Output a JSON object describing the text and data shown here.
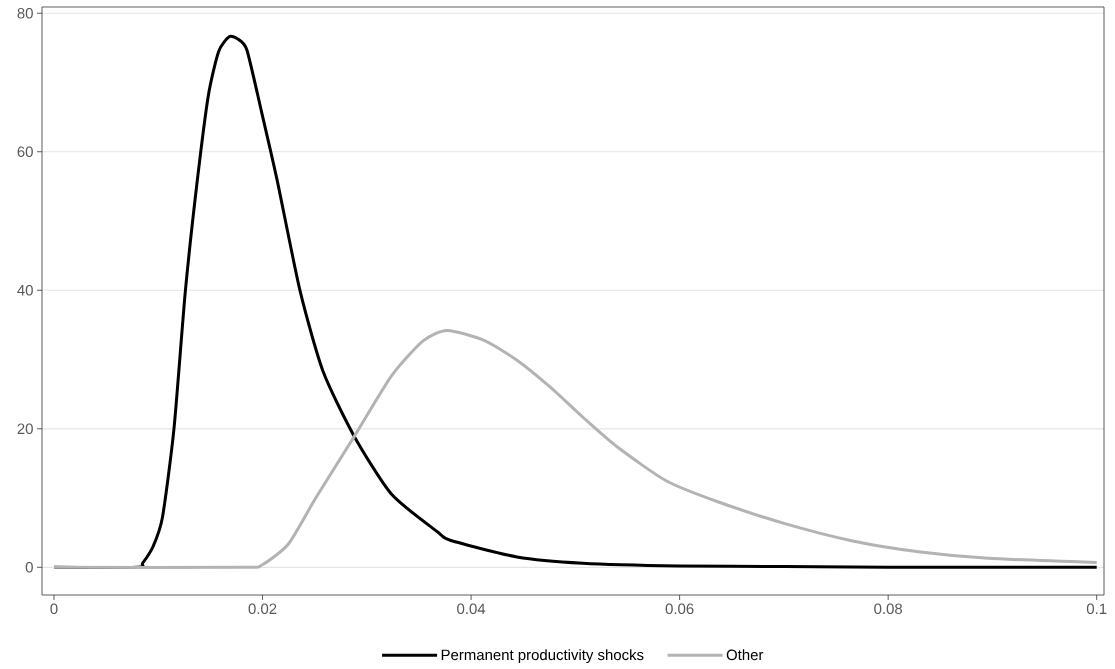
{
  "chart_data": {
    "type": "line",
    "xlim": [
      -0.00115,
      0.1007
    ],
    "ylim": [
      -4.0,
      80.9
    ],
    "xticks": [
      0,
      0.02,
      0.04,
      0.06,
      0.08,
      0.1
    ],
    "yticks": [
      0,
      20,
      40,
      60,
      80
    ],
    "grid": "y",
    "legend": "bottom",
    "line_style": "solid",
    "marker": "none",
    "series": [
      {
        "name": "Permanent productivity shocks",
        "color": "#000000",
        "x": [
          0,
          0.008,
          0.0085,
          0.0095,
          0.0104,
          0.0115,
          0.0126,
          0.0137,
          0.0148,
          0.0158,
          0.0168,
          0.0176,
          0.0185,
          0.0199,
          0.0214,
          0.0236,
          0.0258,
          0.0288,
          0.0324,
          0.0368,
          0.038,
          0.0444,
          0.0507,
          0.06,
          0.07,
          0.08,
          0.1
        ],
        "values": [
          0,
          0,
          0.6,
          3.0,
          7.2,
          19.9,
          39.9,
          55.3,
          68.1,
          74.5,
          76.6,
          76.3,
          74.7,
          65.8,
          55.9,
          39.9,
          28.3,
          18.9,
          10.5,
          5.1,
          3.9,
          1.5,
          0.6,
          0.2,
          0.1,
          0,
          0
        ]
      },
      {
        "name": "Other",
        "color": "#b3b3b3",
        "x": [
          0,
          0.018,
          0.0199,
          0.0225,
          0.0251,
          0.0288,
          0.0324,
          0.0354,
          0.0377,
          0.0412,
          0.0444,
          0.0476,
          0.0507,
          0.054,
          0.0587,
          0.0636,
          0.0701,
          0.0766,
          0.0831,
          0.0896,
          0.1
        ],
        "values": [
          0,
          0,
          0.3,
          3.4,
          10.0,
          18.9,
          27.7,
          32.7,
          34.2,
          32.8,
          29.9,
          26.0,
          21.7,
          17.4,
          12.5,
          9.5,
          6.3,
          3.8,
          2.2,
          1.3,
          0.7
        ]
      }
    ]
  }
}
